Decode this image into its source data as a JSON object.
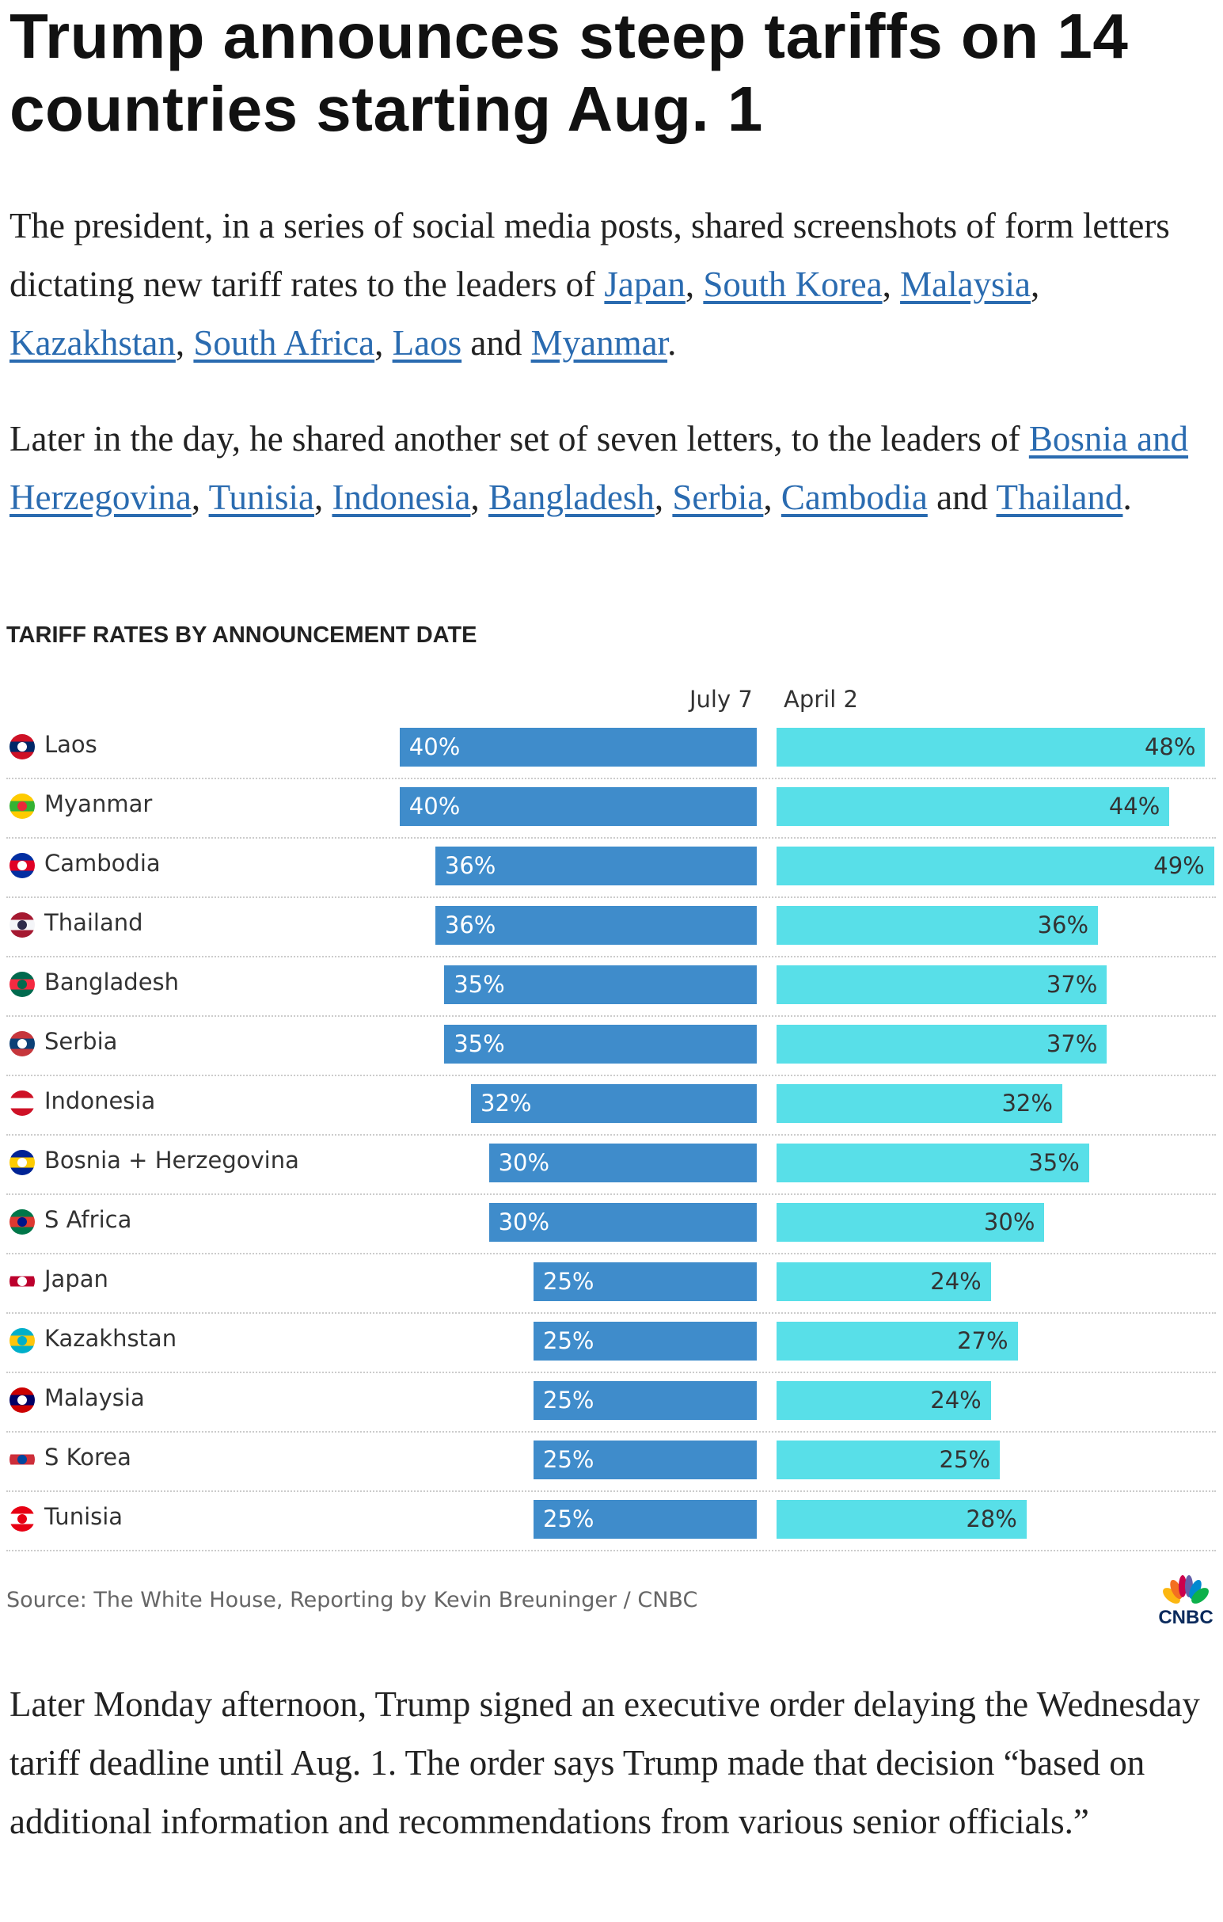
{
  "article": {
    "title": "Trump announces steep tariffs on 14 countries starting Aug. 1",
    "para1": {
      "text1": "The president, in a series of social media posts, shared screenshots of form letters dictating new tariff rates to the leaders of ",
      "links": [
        "Japan",
        "South Korea",
        "Malaysia",
        "Kazakhstan",
        "South Africa",
        "Laos",
        "Myanmar"
      ],
      "and": "and"
    },
    "para2": {
      "text1": "Later in the day, he shared another set of seven letters, to the leaders of ",
      "links": [
        "Bosnia and Herzegovina",
        "Tunisia",
        "Indonesia",
        "Bangladesh",
        "Serbia",
        "Cambodia",
        "Thailand"
      ],
      "and": "and"
    },
    "para3": "Later Monday afternoon, Trump signed an executive order delaying the Wednesday tariff deadline until Aug. 1. The order says Trump made that decision “based on additional information and recommendations from various senior officials.”"
  },
  "chart_data": {
    "type": "bar",
    "title": "TARIFF RATES BY ANNOUNCEMENT DATE",
    "categories": [
      "Laos",
      "Myanmar",
      "Cambodia",
      "Thailand",
      "Bangladesh",
      "Serbia",
      "Indonesia",
      "Bosnia + Herzegovina",
      "S Africa",
      "Japan",
      "Kazakhstan",
      "Malaysia",
      "S Korea",
      "Tunisia"
    ],
    "series": [
      {
        "name": "July 7",
        "color": "#3f8ccb",
        "values": [
          40,
          40,
          36,
          36,
          35,
          35,
          32,
          30,
          30,
          25,
          25,
          25,
          25,
          25
        ]
      },
      {
        "name": "April 2",
        "color": "#58dfe8",
        "values": [
          48,
          44,
          49,
          36,
          37,
          37,
          32,
          35,
          30,
          24,
          27,
          24,
          25,
          28
        ]
      }
    ],
    "value_suffix": "%",
    "flags": [
      [
        "#ce1126",
        "#002868",
        "#fff"
      ],
      [
        "#fecb00",
        "#34b233",
        "#ea2839"
      ],
      [
        "#032ea1",
        "#e00025",
        "#fff"
      ],
      [
        "#a51931",
        "#f4f5f8",
        "#2d2a4a"
      ],
      [
        "#006a4e",
        "#f42a41",
        "#006a4e"
      ],
      [
        "#c6363c",
        "#0c4076",
        "#fff"
      ],
      [
        "#ce1126",
        "#fff",
        "#fff"
      ],
      [
        "#002395",
        "#fecb00",
        "#fff"
      ],
      [
        "#007749",
        "#de3831",
        "#001489"
      ],
      [
        "#fff",
        "#bc002d",
        "#fff"
      ],
      [
        "#00afca",
        "#fec50c",
        "#00afca"
      ],
      [
        "#cc0001",
        "#010066",
        "#fff"
      ],
      [
        "#fff",
        "#cd2e3a",
        "#0047a0"
      ],
      [
        "#e70013",
        "#fff",
        "#e70013"
      ]
    ],
    "source": "Source: The White House, Reporting by Kevin Breuninger / CNBC",
    "logo": "CNBC"
  }
}
